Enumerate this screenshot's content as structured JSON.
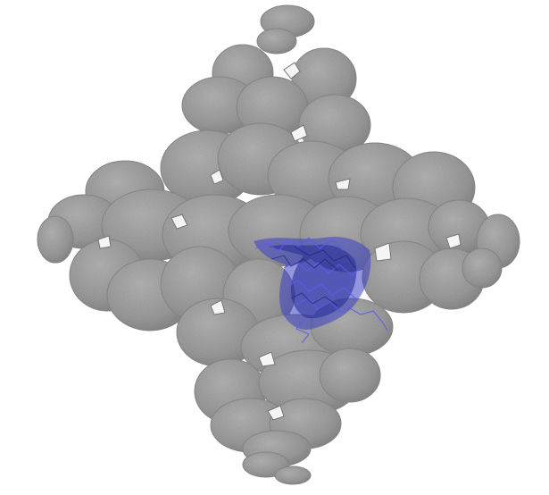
{
  "scene": {
    "background_color": "#ffffff",
    "molecule": {
      "surface_color": "#9a9a9a",
      "surface_shadow_color": "#7f7f7f",
      "highlight_color": "#2a2f9a",
      "highlight_light_color": "#5a5cf0"
    }
  }
}
